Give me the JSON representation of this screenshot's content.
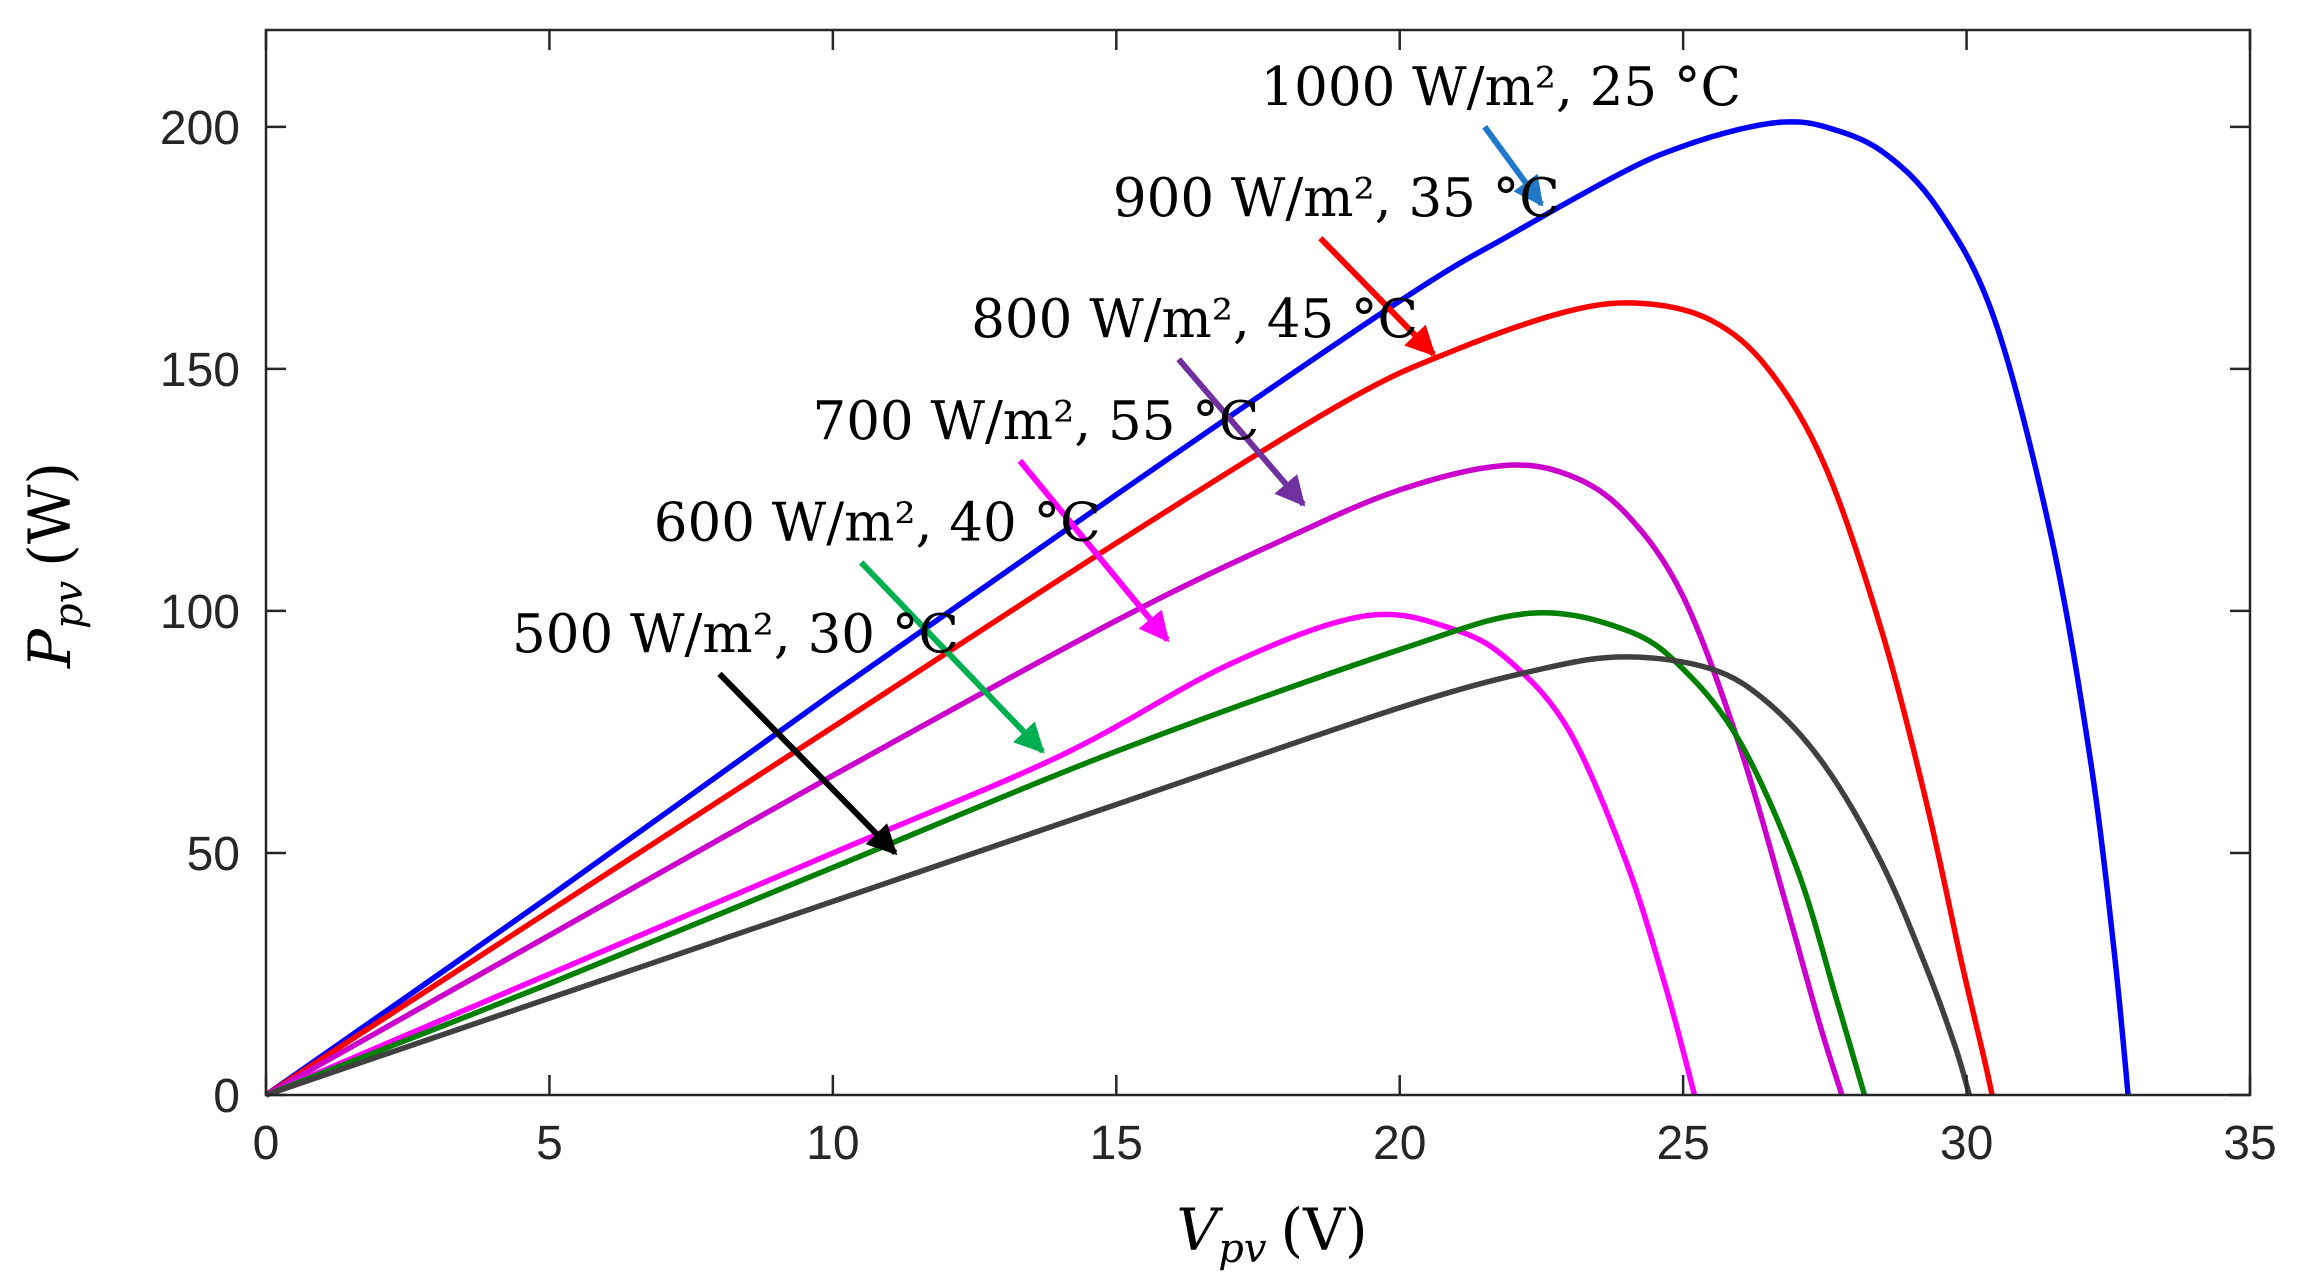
{
  "chart_data": {
    "type": "line",
    "title": "",
    "xlabel": {
      "main": "V",
      "sub": "pv",
      "unit": "(V)"
    },
    "ylabel": {
      "main": "P",
      "sub": "pv",
      "unit": "(W)"
    },
    "xlim": [
      0,
      35
    ],
    "ylim": [
      0,
      220
    ],
    "xticks": [
      0,
      5,
      10,
      15,
      20,
      25,
      30,
      35
    ],
    "yticks": [
      0,
      50,
      100,
      150,
      200
    ],
    "grid": false,
    "series": [
      {
        "name": "1000 W/m², 25 °C",
        "color": "#0000FF",
        "arrow_color": "#1F78C8",
        "x": [
          0,
          5,
          10,
          15,
          20,
          22,
          24,
          25,
          26,
          26.8,
          27.5,
          28.5,
          29.5,
          30.5,
          31.5,
          32.2,
          32.6,
          32.85
        ],
        "y": [
          0,
          41,
          83,
          124,
          164,
          178,
          191,
          196,
          199.5,
          201,
          200,
          195,
          183,
          160,
          115,
          68,
          30,
          0
        ]
      },
      {
        "name": "900 W/m², 35 °C",
        "color": "#FF0000",
        "arrow_color": "#FF0000",
        "x": [
          0,
          5,
          10,
          15,
          19,
          21,
          23,
          24.3,
          25.5,
          26.5,
          27.5,
          28.5,
          29.3,
          29.9,
          30.3,
          30.45
        ],
        "y": [
          0,
          38,
          76,
          114,
          143,
          154,
          162,
          163.5,
          160,
          150,
          130,
          96,
          60,
          28,
          8,
          0
        ]
      },
      {
        "name": "800 W/m², 45 °C",
        "color": "#CC00CC",
        "arrow_color": "#7030A0",
        "x": [
          0,
          5,
          10,
          15,
          18,
          20,
          21.8,
          23,
          24,
          25,
          26,
          26.8,
          27.4,
          27.8
        ],
        "y": [
          0,
          33,
          66,
          98,
          115,
          125,
          130,
          128,
          120,
          103,
          72,
          40,
          15,
          0
        ]
      },
      {
        "name": "700 W/m², 55 °C",
        "color": "#FF00FF",
        "arrow_color": "#FF00FF",
        "x": [
          0,
          5,
          10,
          14,
          17,
          19.4,
          21,
          22,
          23,
          24,
          24.7,
          25.2
        ],
        "y": [
          0,
          25,
          50,
          70,
          89,
          99,
          96,
          89,
          75,
          48,
          22,
          0
        ]
      },
      {
        "name": "600 W/m², 40 °C",
        "color": "#008000",
        "arrow_color": "#00B050",
        "x": [
          0,
          5,
          10,
          15,
          20,
          22.3,
          24,
          25,
          26,
          27,
          27.7,
          28.2
        ],
        "y": [
          0,
          23,
          47,
          71,
          92,
          99.5,
          96,
          88,
          73,
          47,
          20,
          0
        ]
      },
      {
        "name": "500 W/m², 30 °C",
        "color": "#404040",
        "arrow_color": "#000000",
        "x": [
          0,
          5,
          10,
          15,
          20,
          22.5,
          24,
          25.5,
          26.5,
          27.5,
          28.5,
          29.3,
          29.8,
          30.05
        ],
        "y": [
          0,
          20,
          40,
          60,
          80,
          88,
          90.5,
          88,
          81,
          68,
          48,
          26,
          10,
          0
        ]
      }
    ],
    "annotations": [
      {
        "text": "1000 W/m², 25 °C",
        "series": 0,
        "from": [
          21.5,
          200
        ],
        "to": [
          22.5,
          184
        ]
      },
      {
        "text": "900 W/m², 35 °C",
        "series": 1,
        "from": [
          18.6,
          177
        ],
        "to": [
          20.6,
          153
        ]
      },
      {
        "text": "800 W/m², 45 °C",
        "series": 2,
        "from": [
          16.1,
          152
        ],
        "to": [
          18.3,
          122
        ]
      },
      {
        "text": "700 W/m², 55 °C",
        "series": 3,
        "from": [
          13.3,
          131
        ],
        "to": [
          15.9,
          94
        ]
      },
      {
        "text": "600 W/m², 40 °C",
        "series": 4,
        "from": [
          10.5,
          110
        ],
        "to": [
          13.7,
          71
        ]
      },
      {
        "text": "500 W/m², 30 °C",
        "series": 5,
        "from": [
          8,
          87
        ],
        "to": [
          11.1,
          50
        ]
      }
    ]
  }
}
